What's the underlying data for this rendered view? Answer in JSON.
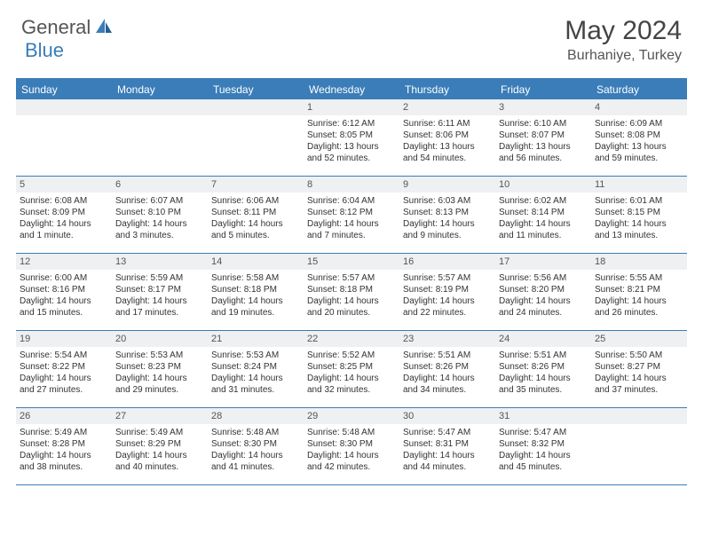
{
  "logo": {
    "part1": "General",
    "part2": "Blue"
  },
  "title": "May 2024",
  "location": "Burhaniye, Turkey",
  "colors": {
    "header_bg": "#3a7db8",
    "header_text": "#ffffff",
    "daynum_bg": "#eef0f2",
    "border": "#3a7db8",
    "text": "#333333",
    "logo_accent": "#3a7db8"
  },
  "dow": [
    "Sunday",
    "Monday",
    "Tuesday",
    "Wednesday",
    "Thursday",
    "Friday",
    "Saturday"
  ],
  "weeks": [
    [
      {
        "n": "",
        "sr": "",
        "ss": "",
        "dl": ""
      },
      {
        "n": "",
        "sr": "",
        "ss": "",
        "dl": ""
      },
      {
        "n": "",
        "sr": "",
        "ss": "",
        "dl": ""
      },
      {
        "n": "1",
        "sr": "Sunrise: 6:12 AM",
        "ss": "Sunset: 8:05 PM",
        "dl": "Daylight: 13 hours and 52 minutes."
      },
      {
        "n": "2",
        "sr": "Sunrise: 6:11 AM",
        "ss": "Sunset: 8:06 PM",
        "dl": "Daylight: 13 hours and 54 minutes."
      },
      {
        "n": "3",
        "sr": "Sunrise: 6:10 AM",
        "ss": "Sunset: 8:07 PM",
        "dl": "Daylight: 13 hours and 56 minutes."
      },
      {
        "n": "4",
        "sr": "Sunrise: 6:09 AM",
        "ss": "Sunset: 8:08 PM",
        "dl": "Daylight: 13 hours and 59 minutes."
      }
    ],
    [
      {
        "n": "5",
        "sr": "Sunrise: 6:08 AM",
        "ss": "Sunset: 8:09 PM",
        "dl": "Daylight: 14 hours and 1 minute."
      },
      {
        "n": "6",
        "sr": "Sunrise: 6:07 AM",
        "ss": "Sunset: 8:10 PM",
        "dl": "Daylight: 14 hours and 3 minutes."
      },
      {
        "n": "7",
        "sr": "Sunrise: 6:06 AM",
        "ss": "Sunset: 8:11 PM",
        "dl": "Daylight: 14 hours and 5 minutes."
      },
      {
        "n": "8",
        "sr": "Sunrise: 6:04 AM",
        "ss": "Sunset: 8:12 PM",
        "dl": "Daylight: 14 hours and 7 minutes."
      },
      {
        "n": "9",
        "sr": "Sunrise: 6:03 AM",
        "ss": "Sunset: 8:13 PM",
        "dl": "Daylight: 14 hours and 9 minutes."
      },
      {
        "n": "10",
        "sr": "Sunrise: 6:02 AM",
        "ss": "Sunset: 8:14 PM",
        "dl": "Daylight: 14 hours and 11 minutes."
      },
      {
        "n": "11",
        "sr": "Sunrise: 6:01 AM",
        "ss": "Sunset: 8:15 PM",
        "dl": "Daylight: 14 hours and 13 minutes."
      }
    ],
    [
      {
        "n": "12",
        "sr": "Sunrise: 6:00 AM",
        "ss": "Sunset: 8:16 PM",
        "dl": "Daylight: 14 hours and 15 minutes."
      },
      {
        "n": "13",
        "sr": "Sunrise: 5:59 AM",
        "ss": "Sunset: 8:17 PM",
        "dl": "Daylight: 14 hours and 17 minutes."
      },
      {
        "n": "14",
        "sr": "Sunrise: 5:58 AM",
        "ss": "Sunset: 8:18 PM",
        "dl": "Daylight: 14 hours and 19 minutes."
      },
      {
        "n": "15",
        "sr": "Sunrise: 5:57 AM",
        "ss": "Sunset: 8:18 PM",
        "dl": "Daylight: 14 hours and 20 minutes."
      },
      {
        "n": "16",
        "sr": "Sunrise: 5:57 AM",
        "ss": "Sunset: 8:19 PM",
        "dl": "Daylight: 14 hours and 22 minutes."
      },
      {
        "n": "17",
        "sr": "Sunrise: 5:56 AM",
        "ss": "Sunset: 8:20 PM",
        "dl": "Daylight: 14 hours and 24 minutes."
      },
      {
        "n": "18",
        "sr": "Sunrise: 5:55 AM",
        "ss": "Sunset: 8:21 PM",
        "dl": "Daylight: 14 hours and 26 minutes."
      }
    ],
    [
      {
        "n": "19",
        "sr": "Sunrise: 5:54 AM",
        "ss": "Sunset: 8:22 PM",
        "dl": "Daylight: 14 hours and 27 minutes."
      },
      {
        "n": "20",
        "sr": "Sunrise: 5:53 AM",
        "ss": "Sunset: 8:23 PM",
        "dl": "Daylight: 14 hours and 29 minutes."
      },
      {
        "n": "21",
        "sr": "Sunrise: 5:53 AM",
        "ss": "Sunset: 8:24 PM",
        "dl": "Daylight: 14 hours and 31 minutes."
      },
      {
        "n": "22",
        "sr": "Sunrise: 5:52 AM",
        "ss": "Sunset: 8:25 PM",
        "dl": "Daylight: 14 hours and 32 minutes."
      },
      {
        "n": "23",
        "sr": "Sunrise: 5:51 AM",
        "ss": "Sunset: 8:26 PM",
        "dl": "Daylight: 14 hours and 34 minutes."
      },
      {
        "n": "24",
        "sr": "Sunrise: 5:51 AM",
        "ss": "Sunset: 8:26 PM",
        "dl": "Daylight: 14 hours and 35 minutes."
      },
      {
        "n": "25",
        "sr": "Sunrise: 5:50 AM",
        "ss": "Sunset: 8:27 PM",
        "dl": "Daylight: 14 hours and 37 minutes."
      }
    ],
    [
      {
        "n": "26",
        "sr": "Sunrise: 5:49 AM",
        "ss": "Sunset: 8:28 PM",
        "dl": "Daylight: 14 hours and 38 minutes."
      },
      {
        "n": "27",
        "sr": "Sunrise: 5:49 AM",
        "ss": "Sunset: 8:29 PM",
        "dl": "Daylight: 14 hours and 40 minutes."
      },
      {
        "n": "28",
        "sr": "Sunrise: 5:48 AM",
        "ss": "Sunset: 8:30 PM",
        "dl": "Daylight: 14 hours and 41 minutes."
      },
      {
        "n": "29",
        "sr": "Sunrise: 5:48 AM",
        "ss": "Sunset: 8:30 PM",
        "dl": "Daylight: 14 hours and 42 minutes."
      },
      {
        "n": "30",
        "sr": "Sunrise: 5:47 AM",
        "ss": "Sunset: 8:31 PM",
        "dl": "Daylight: 14 hours and 44 minutes."
      },
      {
        "n": "31",
        "sr": "Sunrise: 5:47 AM",
        "ss": "Sunset: 8:32 PM",
        "dl": "Daylight: 14 hours and 45 minutes."
      },
      {
        "n": "",
        "sr": "",
        "ss": "",
        "dl": ""
      }
    ]
  ]
}
